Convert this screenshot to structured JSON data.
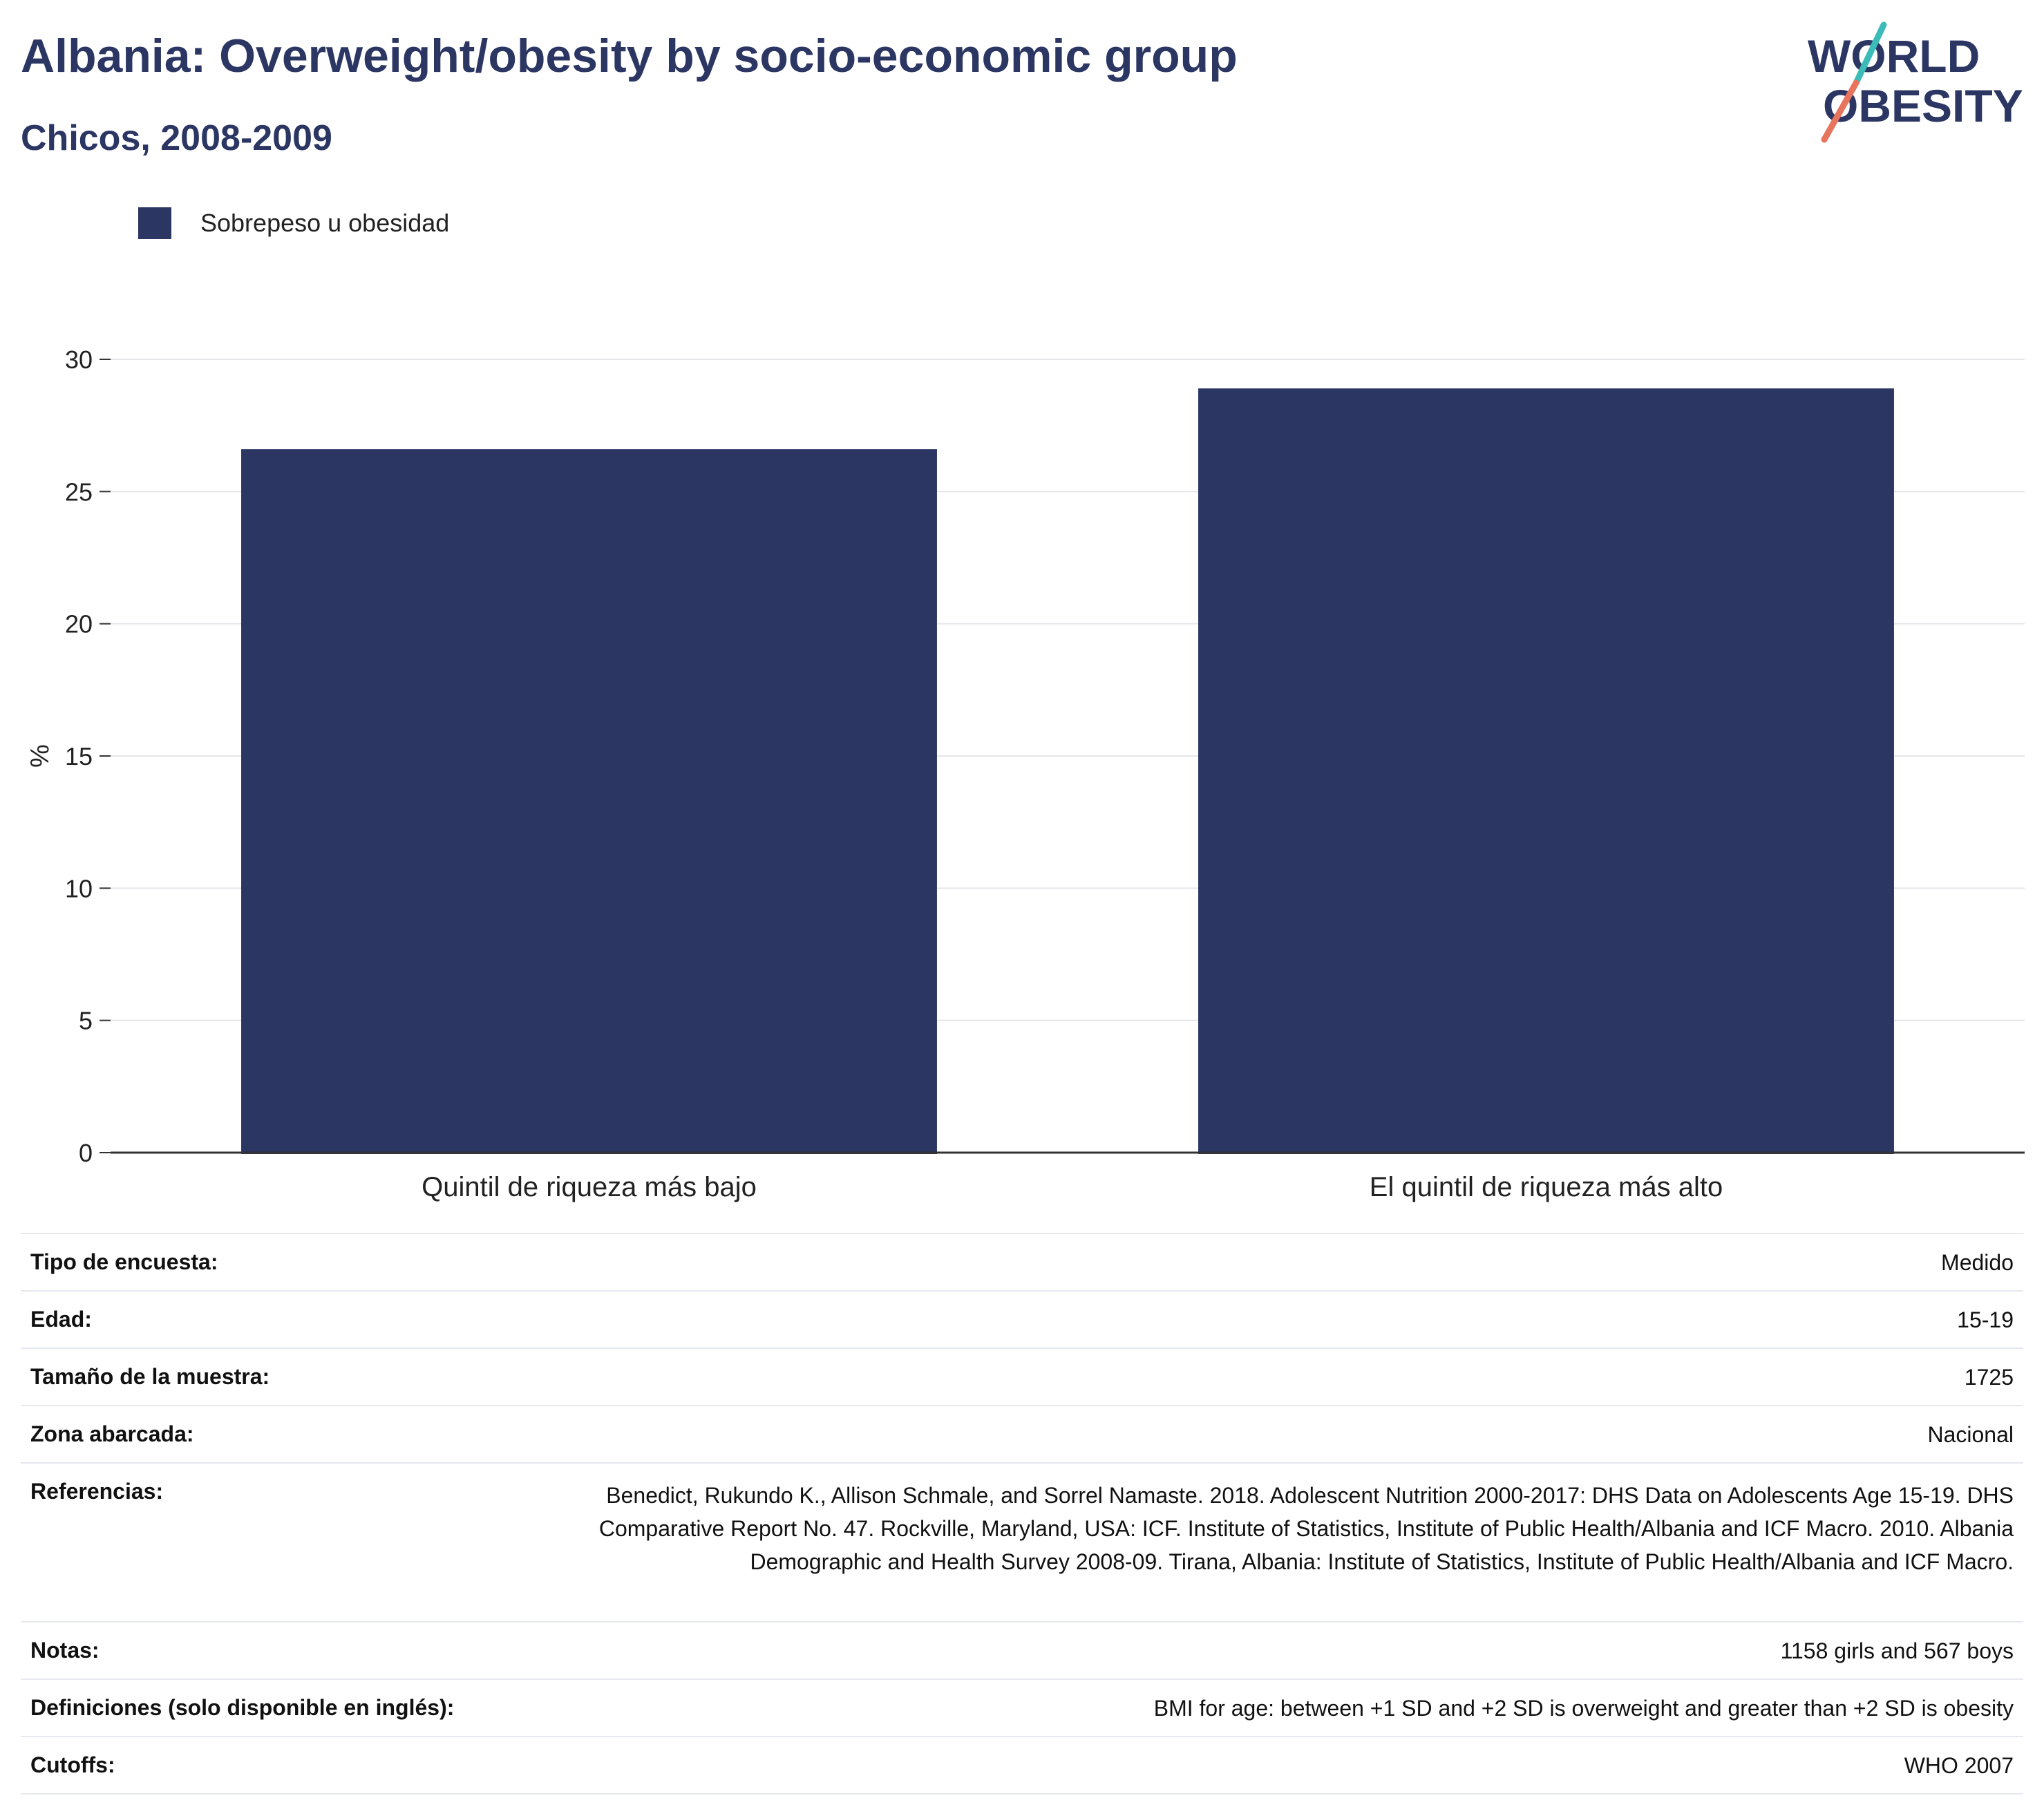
{
  "header": {
    "title": "Albania: Overweight/obesity by socio-economic group",
    "subtitle": "Chicos, 2008-2009"
  },
  "logo": {
    "line1": "WORLD",
    "line2": "OBESITY",
    "colors": {
      "text": "#2b3663",
      "slash_top": "#3bbcb8",
      "slash_bottom": "#e8745e"
    }
  },
  "legend": {
    "label": "Sobrepeso u obesidad",
    "color": "#2b3663"
  },
  "chart_data": {
    "type": "bar",
    "categories": [
      "Quintil de riqueza más bajo",
      "El quintil de riqueza más alto"
    ],
    "series": [
      {
        "name": "Sobrepeso u obesidad",
        "values": [
          26.6,
          28.9
        ],
        "color": "#2b3663"
      }
    ],
    "title": "Albania: Overweight/obesity by socio-economic group",
    "subtitle": "Chicos, 2008-2009",
    "xlabel": "",
    "ylabel": "%",
    "ylim": [
      0,
      30
    ],
    "yticks": [
      0,
      5,
      10,
      15,
      20,
      25,
      30
    ],
    "grid": true,
    "legend_position": "top-left"
  },
  "table": {
    "rows": [
      {
        "key": "Tipo de encuesta:",
        "value": "Medido"
      },
      {
        "key": "Edad:",
        "value": "15-19"
      },
      {
        "key": "Tamaño de la muestra:",
        "value": "1725"
      },
      {
        "key": "Zona abarcada:",
        "value": "Nacional"
      },
      {
        "key": "Referencias:",
        "value": "Benedict, Rukundo K., Allison Schmale, and Sorrel Namaste. 2018. Adolescent Nutrition 2000-2017: DHS Data on Adolescents Age 15-19. DHS Comparative Report No. 47. Rockville, Maryland, USA: ICF. Institute of Statistics, Institute of Public Health/Albania and ICF Macro. 2010. Albania Demographic and Health Survey 2008-09. Tirana, Albania: Institute of Statistics, Institute of Public Health/Albania and ICF Macro."
      },
      {
        "key": "Notas:",
        "value": "1158 girls and 567 boys"
      },
      {
        "key": "Definiciones (solo disponible en inglés):",
        "value": "BMI for age: between +1 SD and +2 SD is overweight and greater than +2 SD is obesity"
      },
      {
        "key": "Cutoffs:",
        "value": "WHO 2007"
      }
    ]
  }
}
